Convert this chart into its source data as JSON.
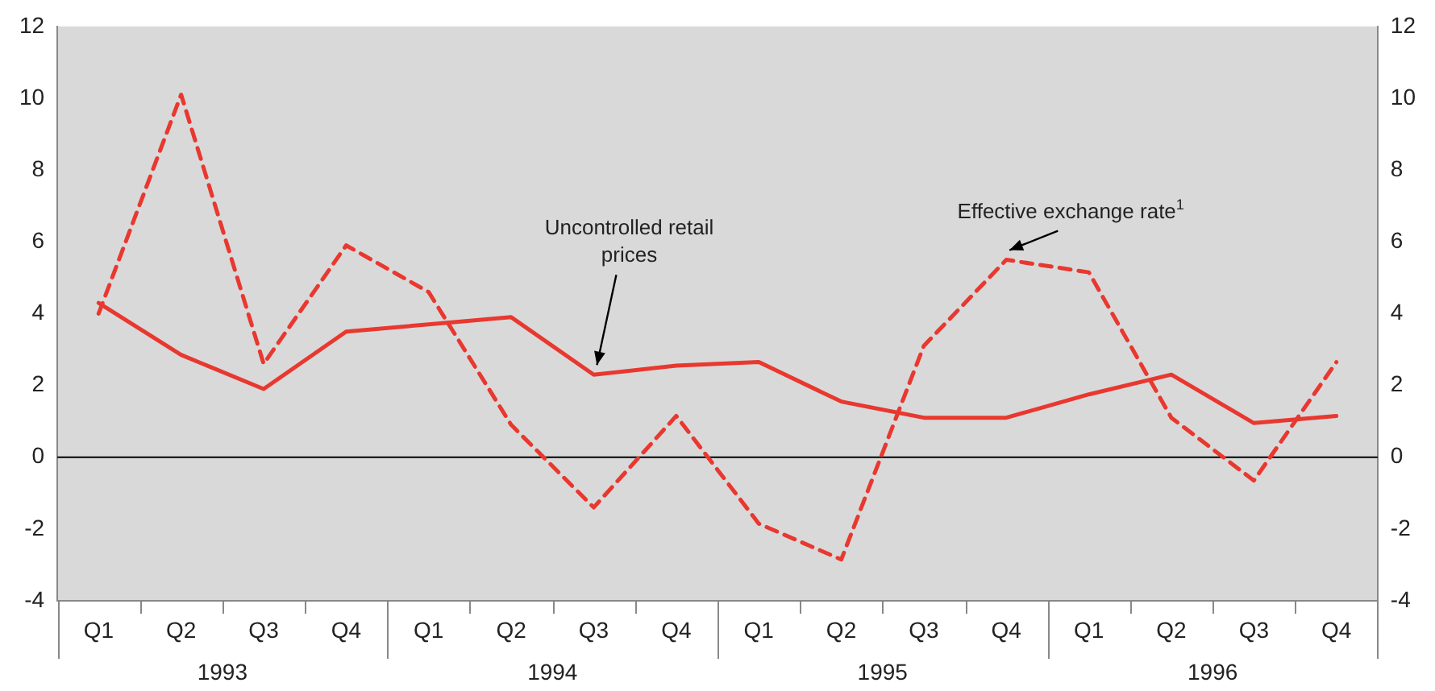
{
  "chart_data": {
    "type": "line",
    "categories": [
      "Q1",
      "Q2",
      "Q3",
      "Q4",
      "Q1",
      "Q2",
      "Q3",
      "Q4",
      "Q1",
      "Q2",
      "Q3",
      "Q4",
      "Q1",
      "Q2",
      "Q3",
      "Q4"
    ],
    "series": [
      {
        "name": "Uncontrolled retail prices",
        "color": "#e8382f",
        "line_style": "solid",
        "values": [
          4.3,
          2.85,
          1.9,
          3.5,
          3.7,
          3.9,
          2.3,
          2.55,
          2.65,
          1.55,
          1.1,
          1.1,
          1.75,
          2.3,
          0.95,
          1.15
        ]
      },
      {
        "name": "Effective exchange rate$^{1}$",
        "color": "#e8382f",
        "line_style": "dashed",
        "values": [
          4.0,
          10.1,
          2.6,
          5.9,
          4.6,
          0.9,
          -1.4,
          1.15,
          -1.85,
          -2.85,
          3.1,
          5.5,
          5.15,
          1.1,
          -0.65,
          2.65
        ]
      }
    ],
    "ylim": [
      -4,
      12
    ],
    "yticks": [
      -4,
      -2,
      0,
      2,
      4,
      6,
      8,
      10,
      12
    ],
    "y2lim": [
      -4,
      12
    ],
    "y2ticks": [
      -4,
      -2,
      0,
      2,
      4,
      6,
      8,
      10,
      12
    ],
    "ref_lines": [
      {
        "axis": "y",
        "value": 0,
        "color": "#000000"
      }
    ],
    "annotations": [
      "1993",
      "1994",
      "1995",
      "1996"
    ],
    "grid": false,
    "legend": false,
    "marker": "none"
  }
}
